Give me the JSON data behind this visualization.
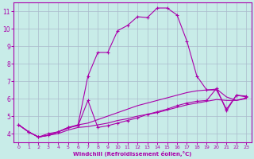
{
  "xlabel": "Windchill (Refroidissement éolien,°C)",
  "xlim": [
    -0.5,
    23.5
  ],
  "ylim": [
    3.5,
    11.5
  ],
  "xticks": [
    0,
    1,
    2,
    3,
    4,
    5,
    6,
    7,
    8,
    9,
    10,
    11,
    12,
    13,
    14,
    15,
    16,
    17,
    18,
    19,
    20,
    21,
    22,
    23
  ],
  "yticks": [
    4,
    5,
    6,
    7,
    8,
    9,
    10,
    11
  ],
  "bg_color": "#c8ece8",
  "line_color": "#aa00aa",
  "grid_color": "#aabbcc",
  "series": [
    {
      "x": [
        0,
        1,
        2,
        3,
        4,
        5,
        6,
        7,
        8,
        9,
        10,
        11,
        12,
        13,
        14,
        15,
        16,
        17,
        18,
        19,
        20,
        21,
        22,
        23
      ],
      "y": [
        4.5,
        4.1,
        3.8,
        3.9,
        4.0,
        4.2,
        4.35,
        4.4,
        4.5,
        4.6,
        4.75,
        4.85,
        5.0,
        5.1,
        5.2,
        5.35,
        5.5,
        5.65,
        5.75,
        5.85,
        5.95,
        5.9,
        5.9,
        6.0
      ],
      "marker": null
    },
    {
      "x": [
        0,
        1,
        2,
        3,
        4,
        5,
        6,
        7,
        8,
        9,
        10,
        11,
        12,
        13,
        14,
        15,
        16,
        17,
        18,
        19,
        20,
        21,
        22,
        23
      ],
      "y": [
        4.5,
        4.1,
        3.8,
        3.9,
        4.1,
        4.3,
        4.5,
        4.6,
        4.8,
        5.0,
        5.2,
        5.4,
        5.6,
        5.75,
        5.9,
        6.05,
        6.2,
        6.35,
        6.45,
        6.5,
        6.55,
        6.1,
        5.9,
        6.05
      ],
      "marker": null
    },
    {
      "x": [
        0,
        1,
        2,
        3,
        4,
        5,
        6,
        7,
        8,
        9,
        10,
        11,
        12,
        13,
        14,
        15,
        16,
        17,
        18,
        19,
        20,
        21,
        22,
        23
      ],
      "y": [
        4.5,
        4.1,
        3.8,
        3.9,
        4.1,
        4.35,
        4.45,
        5.9,
        4.35,
        4.45,
        4.6,
        4.75,
        4.9,
        5.1,
        5.25,
        5.4,
        5.6,
        5.75,
        5.85,
        5.9,
        6.6,
        5.3,
        6.2,
        6.1
      ],
      "marker": "+"
    },
    {
      "x": [
        0,
        1,
        2,
        3,
        4,
        5,
        6,
        7,
        8,
        9,
        10,
        11,
        12,
        13,
        14,
        15,
        16,
        17,
        18,
        19,
        20,
        21,
        22,
        23
      ],
      "y": [
        4.5,
        4.1,
        3.8,
        4.0,
        4.1,
        4.35,
        4.5,
        7.3,
        8.65,
        8.65,
        9.9,
        10.2,
        10.7,
        10.65,
        11.2,
        11.2,
        10.8,
        9.3,
        7.3,
        6.5,
        6.5,
        5.4,
        6.2,
        6.15
      ],
      "marker": "+"
    }
  ]
}
